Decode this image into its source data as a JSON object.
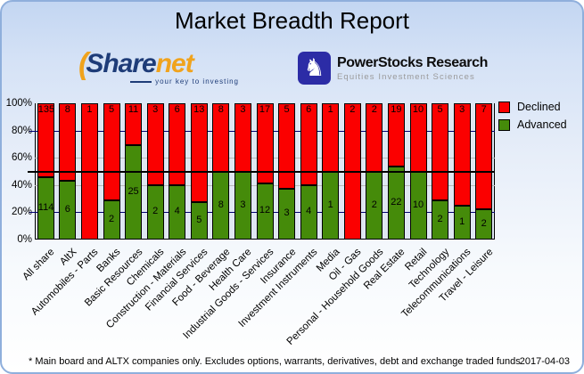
{
  "title": "Market Breadth Report",
  "logos": {
    "sharenet": {
      "part1": "Share",
      "part2": "net",
      "paren": "(",
      "tagline": "your key to investing",
      "navy": "#1e3c78",
      "orange": "#f0a31d"
    },
    "powerstocks": {
      "name": "PowerStocks  Research",
      "tagline": "Equities Investment Sciences",
      "knight_icon": "chess-knight",
      "badge_color": "#2c2ca6"
    }
  },
  "chart_data": {
    "type": "bar",
    "stacked": true,
    "percent_normalized": true,
    "categories": [
      "All share",
      "AltX",
      "Automobiles - Parts",
      "Banks",
      "Basic Resources",
      "Chemicals",
      "Construction - Materials",
      "Financial Services",
      "Food - Beverage",
      "Health Care",
      "Industrial Goods - Services",
      "Insurance",
      "Investment Instruments",
      "Media",
      "Oil - Gas",
      "Personal - Household Goods",
      "Real Estate",
      "Retail",
      "Technology",
      "Telecommunications",
      "Travel - Leisure"
    ],
    "series": [
      {
        "name": "Declined",
        "color": "#fb0000",
        "values": [
          135,
          8,
          1,
          5,
          11,
          3,
          6,
          13,
          8,
          3,
          17,
          5,
          6,
          1,
          2,
          2,
          19,
          10,
          5,
          3,
          7
        ]
      },
      {
        "name": "Advanced",
        "color": "#458b0a",
        "values": [
          114,
          6,
          0,
          2,
          25,
          2,
          4,
          5,
          8,
          3,
          12,
          3,
          4,
          1,
          0,
          2,
          22,
          10,
          2,
          1,
          2
        ]
      }
    ],
    "advanced_pct": [
      45.8,
      42.9,
      0,
      28.6,
      69.4,
      40,
      40,
      27.8,
      50,
      50,
      41.4,
      37.5,
      40,
      50,
      0,
      50,
      53.7,
      50,
      28.6,
      25,
      22.2
    ],
    "y_ticks": [
      "100%",
      "80%",
      "60%",
      "40%",
      "20%",
      "0%"
    ],
    "ylim": [
      0,
      100
    ],
    "grid": {
      "navy_lines_pct": [
        80,
        20
      ],
      "gray_lines_pct": [
        60,
        40
      ],
      "reference_line_pct": 50
    },
    "legend_position": "top-right"
  },
  "footer": {
    "note": "* Main board and ALTX companies only. Excludes options, warrants, derivatives, debt and exchange traded funds",
    "date": "2017-04-03"
  }
}
